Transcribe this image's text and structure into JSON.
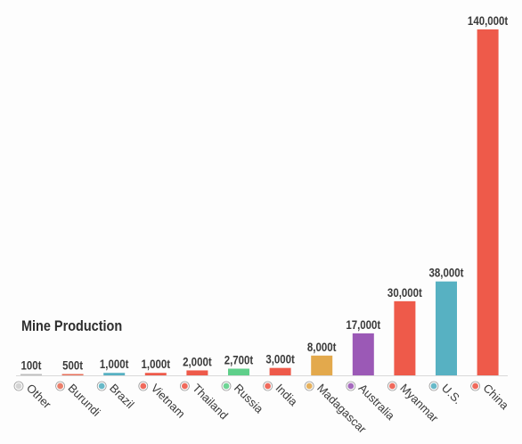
{
  "chart_data": {
    "type": "bar",
    "title": "Mine Production",
    "categories": [
      "Other",
      "Burundi",
      "Brazil",
      "Vietnam",
      "Thailand",
      "Russia",
      "India",
      "Madagascar",
      "Australia",
      "Myanmar",
      "U.S.",
      "China"
    ],
    "values": [
      100,
      500,
      1000,
      1000,
      2000,
      2700,
      3000,
      8000,
      17000,
      30000,
      38000,
      140000
    ],
    "value_labels": [
      "100t",
      "500t",
      "1,000t",
      "1,000t",
      "2,000t",
      "2,700t",
      "3,000t",
      "8,000t",
      "17,000t",
      "30,000t",
      "38,000t",
      "140,000t"
    ],
    "unit": "t",
    "ylim": [
      0,
      140000
    ],
    "grid": false,
    "legend": "none",
    "bar_colors": [
      "#bdbdbd",
      "#e8705a",
      "#57b1c2",
      "#ee5a4a",
      "#ee5a4a",
      "#5fcf8a",
      "#ee5a4a",
      "#e3a94c",
      "#9b59b6",
      "#ee5a4a",
      "#57b1c2",
      "#ee5a4a"
    ],
    "flag_icons": [
      "globe-icon",
      "burundi-flag-icon",
      "brazil-flag-icon",
      "vietnam-flag-icon",
      "thailand-flag-icon",
      "russia-flag-icon",
      "india-flag-icon",
      "madagascar-flag-icon",
      "australia-flag-icon",
      "myanmar-flag-icon",
      "us-flag-icon",
      "china-flag-icon"
    ]
  }
}
